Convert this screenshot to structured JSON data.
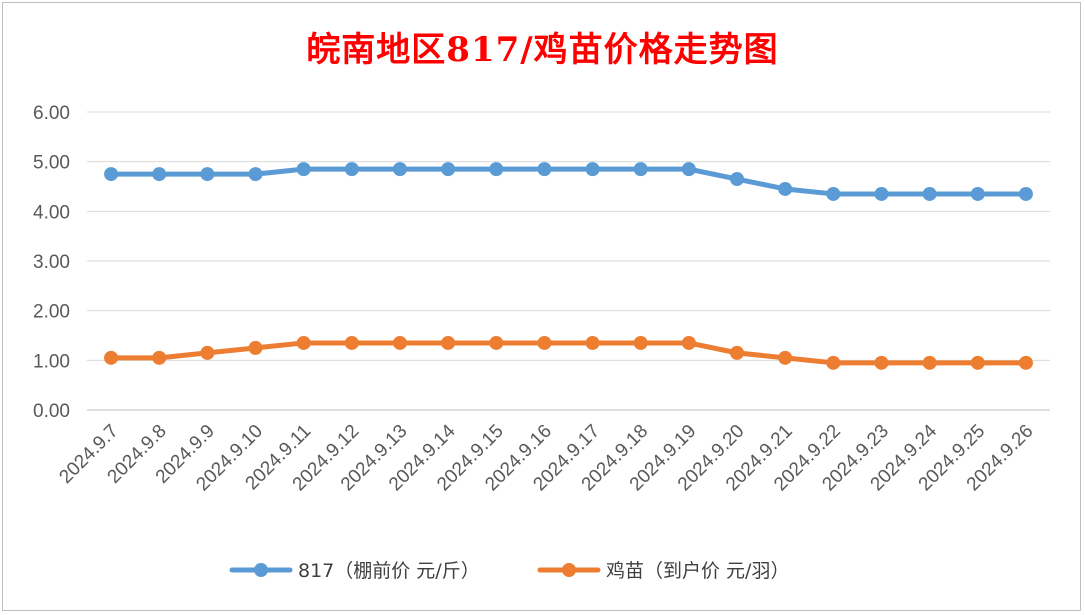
{
  "chart_data": {
    "type": "line",
    "title": "皖南地区817/鸡苗价格走势图",
    "categories": [
      "2024.9.7",
      "2024.9.8",
      "2024.9.9",
      "2024.9.10",
      "2024.9.11",
      "2024.9.12",
      "2024.9.13",
      "2024.9.14",
      "2024.9.15",
      "2024.9.16",
      "2024.9.17",
      "2024.9.18",
      "2024.9.19",
      "2024.9.20",
      "2024.9.21",
      "2024.9.22",
      "2024.9.23",
      "2024.9.24",
      "2024.9.25",
      "2024.9.26"
    ],
    "series": [
      {
        "name": "817（棚前价 元/斤）",
        "color": "#5b9bd5",
        "values": [
          4.75,
          4.75,
          4.75,
          4.75,
          4.85,
          4.85,
          4.85,
          4.85,
          4.85,
          4.85,
          4.85,
          4.85,
          4.85,
          4.65,
          4.45,
          4.35,
          4.35,
          4.35,
          4.35,
          4.35
        ]
      },
      {
        "name": "鸡苗（到户价 元/羽）",
        "color": "#ed7d31",
        "values": [
          1.05,
          1.05,
          1.15,
          1.25,
          1.35,
          1.35,
          1.35,
          1.35,
          1.35,
          1.35,
          1.35,
          1.35,
          1.35,
          1.15,
          1.05,
          0.95,
          0.95,
          0.95,
          0.95,
          0.95
        ]
      }
    ],
    "ylim": [
      0,
      6
    ],
    "yticks": [
      "0.00",
      "1.00",
      "2.00",
      "3.00",
      "4.00",
      "5.00",
      "6.00"
    ],
    "grid": true,
    "legend_position": "bottom"
  }
}
